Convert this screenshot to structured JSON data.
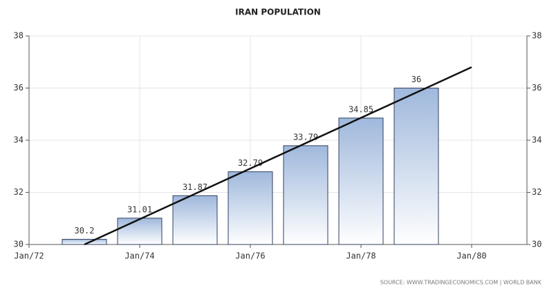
{
  "chart_data": {
    "type": "bar",
    "title": "IRAN POPULATION",
    "x": [
      1973,
      1974,
      1975,
      1976,
      1977,
      1978,
      1979
    ],
    "values": [
      30.2,
      31.01,
      31.87,
      32.79,
      33.79,
      34.85,
      36
    ],
    "color": "#9fb8dc",
    "edge_color": "#2f3f5f",
    "xlim": [
      1972,
      1981
    ],
    "xticks": [
      {
        "value": 1972,
        "label": "Jan/72"
      },
      {
        "value": 1974,
        "label": "Jan/74"
      },
      {
        "value": 1976,
        "label": "Jan/76"
      },
      {
        "value": 1978,
        "label": "Jan/78"
      },
      {
        "value": 1980,
        "label": "Jan/80"
      }
    ],
    "ylim": [
      30,
      38
    ],
    "yticks": [
      30,
      32,
      34,
      36,
      38
    ],
    "grid": true,
    "trend": {
      "x": [
        1973,
        1980
      ],
      "values": [
        30,
        36.8
      ],
      "color": "#111111"
    },
    "source": "SOURCE: WWW.TRADINGECONOMICS.COM | WORLD BANK"
  }
}
